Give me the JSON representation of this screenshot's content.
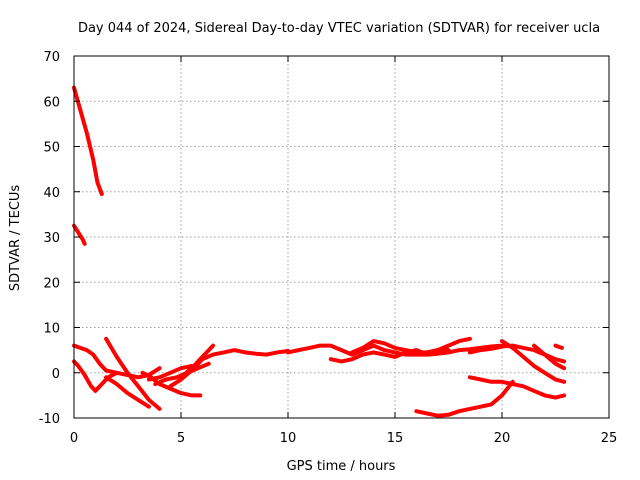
{
  "chart_data": {
    "type": "scatter",
    "title": "Day 044 of 2024, Sidereal Day-to-day VTEC variation (SDTVAR) for receiver ucla",
    "xlabel": "GPS time / hours",
    "ylabel": "SDTVAR / TECUs",
    "xlim": [
      0,
      25
    ],
    "ylim": [
      -10,
      70
    ],
    "xticks": [
      0,
      5,
      10,
      15,
      20,
      25
    ],
    "yticks": [
      -10,
      0,
      10,
      20,
      30,
      40,
      50,
      60,
      70
    ],
    "grid": true,
    "color": "#ff0000",
    "series": [
      {
        "name": "arc-high-a",
        "x": [
          0.0,
          0.3,
          0.6,
          0.9,
          1.1,
          1.3
        ],
        "y": [
          63,
          58,
          53,
          47,
          42,
          39.5
        ]
      },
      {
        "name": "arc-high-b",
        "x": [
          0.0,
          0.2,
          0.4,
          0.5
        ],
        "y": [
          32.5,
          31,
          29.5,
          28.5
        ]
      },
      {
        "name": "arc-1",
        "x": [
          0.0,
          0.3,
          0.6,
          0.9,
          1.2,
          1.5,
          2.0,
          2.5,
          3.0,
          3.5,
          4.0
        ],
        "y": [
          6,
          5.5,
          5,
          4,
          2,
          0.5,
          0,
          -0.5,
          -1,
          -0.5,
          1
        ]
      },
      {
        "name": "arc-2",
        "x": [
          0.0,
          0.2,
          0.5,
          0.8,
          1.0,
          1.3,
          1.6,
          2.0
        ],
        "y": [
          2.5,
          1.5,
          -0.5,
          -3,
          -4,
          -2.5,
          -1,
          0
        ]
      },
      {
        "name": "arc-3",
        "x": [
          1.5,
          2.0,
          2.5,
          3.0,
          3.5,
          4.0
        ],
        "y": [
          7.5,
          3.5,
          0,
          -3,
          -6,
          -8
        ]
      },
      {
        "name": "arc-4",
        "x": [
          1.5,
          2.0,
          2.5,
          3.0,
          3.5
        ],
        "y": [
          -1,
          -2.5,
          -4.5,
          -6,
          -7.5
        ]
      },
      {
        "name": "arc-5",
        "x": [
          3.2,
          3.6,
          4.0,
          4.5,
          5.0,
          5.5,
          5.9
        ],
        "y": [
          0,
          -1,
          -2.5,
          -3.5,
          -4.5,
          -5,
          -5
        ]
      },
      {
        "name": "arc-6",
        "x": [
          3.8,
          4.3,
          4.8,
          5.3,
          5.8,
          6.3
        ],
        "y": [
          -2.5,
          -1.5,
          -1,
          0,
          1,
          2
        ]
      },
      {
        "name": "arc-7",
        "x": [
          3.5,
          4.0,
          4.5,
          5.0,
          5.5
        ],
        "y": [
          -1.5,
          -1,
          0,
          1,
          1.5
        ]
      },
      {
        "name": "arc-8",
        "x": [
          4.5,
          5.0,
          5.5,
          6.0,
          6.5,
          7.0,
          7.5,
          8.0,
          8.5,
          9.0,
          9.5,
          10.0
        ],
        "y": [
          -3,
          -1.5,
          0.5,
          3,
          4,
          4.5,
          5,
          4.5,
          4.2,
          4,
          4.5,
          4.8
        ]
      },
      {
        "name": "arc-9",
        "x": [
          5.0,
          5.5,
          6.0,
          6.5
        ],
        "y": [
          -1,
          1,
          3.5,
          6
        ]
      },
      {
        "name": "arc-10",
        "x": [
          10.0,
          10.5,
          11.0,
          11.5,
          12.0,
          12.5,
          13.0,
          13.5,
          14.0,
          14.5,
          15.0,
          15.5,
          16.0,
          16.5,
          17.0,
          17.5,
          18.0,
          18.5,
          19.0,
          19.5,
          20.0
        ],
        "y": [
          4.5,
          5,
          5.5,
          6,
          6,
          5,
          4,
          5,
          6,
          5,
          4.5,
          4,
          4,
          4,
          4.2,
          4.5,
          5,
          5.2,
          5.5,
          5.8,
          6
        ]
      },
      {
        "name": "arc-11",
        "x": [
          12.0,
          12.5,
          13.0,
          13.5,
          14.0,
          14.5,
          15.0,
          15.5,
          16.0,
          16.5
        ],
        "y": [
          3,
          2.5,
          3,
          4,
          4.5,
          4,
          3.5,
          4.5,
          5,
          4
        ]
      },
      {
        "name": "arc-12",
        "x": [
          13.0,
          13.5,
          14.0,
          14.5,
          15.0,
          15.5,
          16.0,
          16.5,
          17.0,
          17.5
        ],
        "y": [
          4.5,
          5.5,
          7,
          6.5,
          5.5,
          5,
          4.5,
          4.5,
          5,
          5
        ]
      },
      {
        "name": "arc-13",
        "x": [
          16.5,
          17.0,
          17.5,
          18.0,
          18.5
        ],
        "y": [
          4.5,
          5,
          6,
          7,
          7.5
        ]
      },
      {
        "name": "arc-14",
        "x": [
          18.5,
          19.0,
          19.5,
          20.0,
          20.5,
          21.0,
          21.5,
          22.0,
          22.5,
          22.9
        ],
        "y": [
          4.5,
          5,
          5.3,
          5.8,
          6,
          5.5,
          5,
          4,
          2,
          1
        ]
      },
      {
        "name": "arc-15",
        "x": [
          20.0,
          20.5,
          21.0,
          21.5,
          22.0,
          22.5,
          22.9
        ],
        "y": [
          7,
          5.5,
          3.5,
          1.5,
          0,
          -1.5,
          -2
        ]
      },
      {
        "name": "arc-16",
        "x": [
          18.5,
          19.0,
          19.5,
          20.0,
          20.5,
          21.0,
          21.5,
          22.0,
          22.5,
          22.9
        ],
        "y": [
          -1,
          -1.5,
          -2,
          -2,
          -2.5,
          -3,
          -4,
          -5,
          -5.5,
          -5
        ]
      },
      {
        "name": "arc-17",
        "x": [
          16.0,
          16.5,
          17.0,
          17.5,
          18.0,
          18.5,
          19.0,
          19.5,
          20.0,
          20.5
        ],
        "y": [
          -8.5,
          -9,
          -9.5,
          -9.3,
          -8.5,
          -8,
          -7.5,
          -7,
          -5,
          -2
        ]
      },
      {
        "name": "arc-18",
        "x": [
          21.5,
          22.0,
          22.5,
          22.9
        ],
        "y": [
          6,
          4,
          3,
          2.5
        ]
      },
      {
        "name": "arc-19",
        "x": [
          22.5,
          22.8
        ],
        "y": [
          6,
          5.5
        ]
      }
    ]
  }
}
